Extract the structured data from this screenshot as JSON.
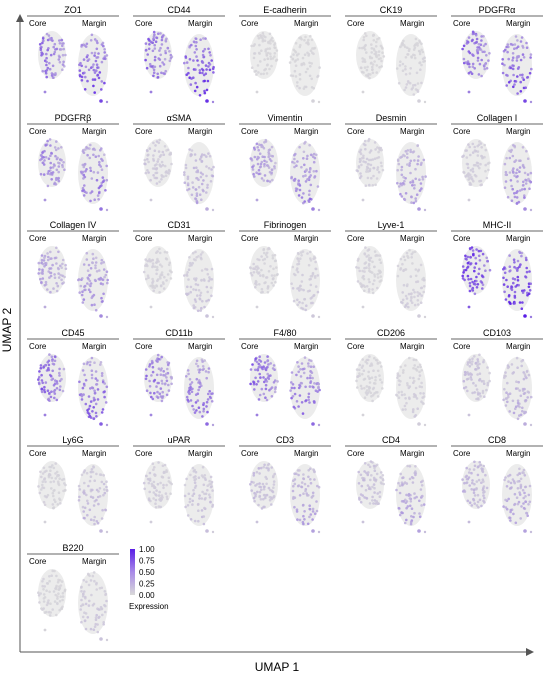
{
  "chart_data": {
    "type": "scatter",
    "title": "",
    "xlabel": "UMAP 1",
    "ylabel": "UMAP 2",
    "panel_columns": [
      "Core",
      "Margin"
    ],
    "colorbar": {
      "title": "Expression",
      "ticks": [
        "1.00",
        "0.75",
        "0.50",
        "0.25",
        "0.00"
      ],
      "range": [
        0,
        1
      ],
      "low_color": "#d9d9d9",
      "high_color": "#5a1ee6"
    },
    "markers": [
      {
        "name": "ZO1",
        "core": 0.55,
        "margin": 0.65
      },
      {
        "name": "CD44",
        "core": 0.6,
        "margin": 0.75
      },
      {
        "name": "E-cadherin",
        "core": 0.03,
        "margin": 0.03
      },
      {
        "name": "CK19",
        "core": 0.03,
        "margin": 0.04
      },
      {
        "name": "PDGFRα",
        "core": 0.6,
        "margin": 0.65
      },
      {
        "name": "PDGFRβ",
        "core": 0.45,
        "margin": 0.45
      },
      {
        "name": "αSMA",
        "core": 0.1,
        "margin": 0.2
      },
      {
        "name": "Vimentin",
        "core": 0.35,
        "margin": 0.4
      },
      {
        "name": "Desmin",
        "core": 0.08,
        "margin": 0.3
      },
      {
        "name": "Collagen I",
        "core": 0.08,
        "margin": 0.35
      },
      {
        "name": "Collagen IV",
        "core": 0.3,
        "margin": 0.35
      },
      {
        "name": "CD31",
        "core": 0.05,
        "margin": 0.1
      },
      {
        "name": "Fibrinogen",
        "core": 0.05,
        "margin": 0.08
      },
      {
        "name": "Lyve-1",
        "core": 0.05,
        "margin": 0.06
      },
      {
        "name": "MHC-II",
        "core": 0.85,
        "margin": 0.85
      },
      {
        "name": "CD45",
        "core": 0.6,
        "margin": 0.55
      },
      {
        "name": "CD11b",
        "core": 0.55,
        "margin": 0.5
      },
      {
        "name": "F4/80",
        "core": 0.6,
        "margin": 0.5
      },
      {
        "name": "CD206",
        "core": 0.04,
        "margin": 0.06
      },
      {
        "name": "CD103",
        "core": 0.15,
        "margin": 0.2
      },
      {
        "name": "Ly6G",
        "core": 0.05,
        "margin": 0.15
      },
      {
        "name": "uPAR",
        "core": 0.08,
        "margin": 0.12
      },
      {
        "name": "CD3",
        "core": 0.15,
        "margin": 0.25
      },
      {
        "name": "CD4",
        "core": 0.15,
        "margin": 0.25
      },
      {
        "name": "CD8",
        "core": 0.2,
        "margin": 0.25
      },
      {
        "name": "B220",
        "core": 0.04,
        "margin": 0.1
      }
    ]
  }
}
